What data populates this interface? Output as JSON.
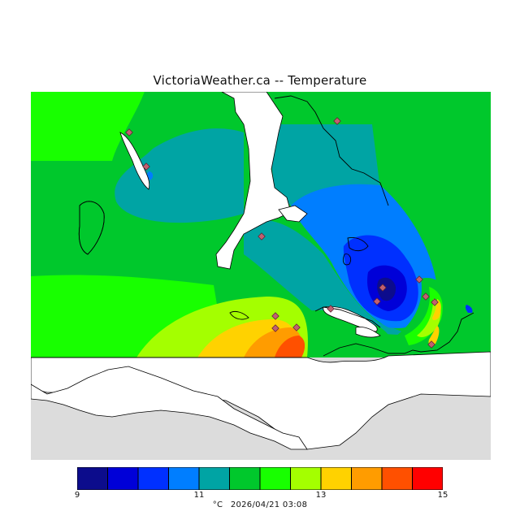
{
  "title": "VictoriaWeather.ca -- Temperature",
  "legend": {
    "ticks": [
      "9",
      "11",
      "13",
      "15"
    ],
    "unit": "°C",
    "timestamp": "2026/04/21 03:08",
    "colors": [
      "#0c0c8c",
      "#0000d8",
      "#0030ff",
      "#007eff",
      "#00a4a4",
      "#00c82c",
      "#18ff00",
      "#a4ff00",
      "#ffd200",
      "#ff9c00",
      "#ff5000",
      "#ff0000"
    ]
  },
  "colors": {
    "land": "#dcdcdc",
    "water": "#ffffff",
    "station": "#c06070"
  }
}
